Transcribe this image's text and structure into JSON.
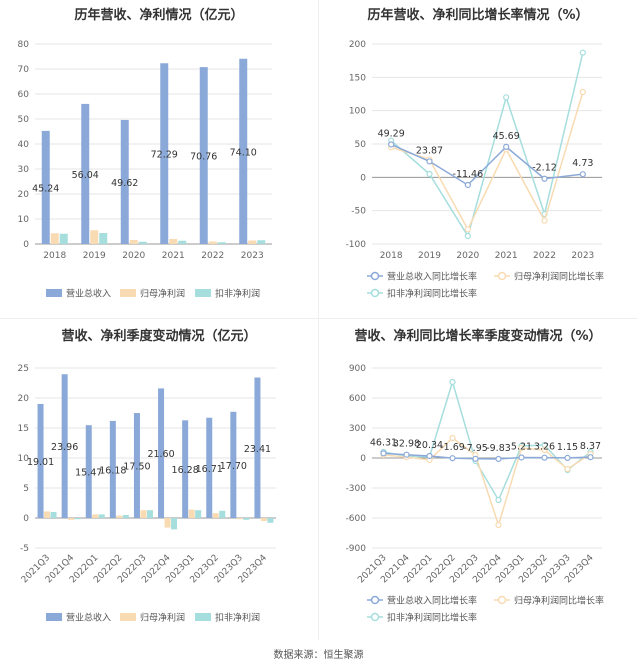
{
  "source_text": "数据来源：恒生聚源",
  "chart_data": [
    {
      "type": "bar",
      "title": "历年营收、净利情况（亿元）",
      "categories": [
        "2018",
        "2019",
        "2020",
        "2021",
        "2022",
        "2023"
      ],
      "ylim": [
        0,
        80
      ],
      "yticks": [
        0,
        10,
        20,
        30,
        40,
        50,
        60,
        70,
        80
      ],
      "grid": true,
      "legend_position": "bottom",
      "series": [
        {
          "name": "营业总收入",
          "color": "#8ba9d8",
          "values": [
            45.24,
            56.04,
            49.62,
            72.29,
            70.76,
            74.1
          ],
          "labels": [
            "45.24",
            "56.04",
            "49.62",
            "72.29",
            "70.76",
            "74.10"
          ]
        },
        {
          "name": "归母净利润",
          "color": "#f8dbb2",
          "values": [
            4.3,
            5.5,
            1.6,
            2.0,
            1.0,
            1.4
          ]
        },
        {
          "name": "扣非净利润",
          "color": "#a5dedd",
          "values": [
            4.1,
            4.4,
            0.9,
            1.3,
            0.7,
            1.5
          ]
        }
      ]
    },
    {
      "type": "line",
      "title": "历年营收、净利同比增长率情况（%）",
      "categories": [
        "2018",
        "2019",
        "2020",
        "2021",
        "2022",
        "2023"
      ],
      "ylim": [
        -100,
        200
      ],
      "yticks": [
        -100,
        -50,
        0,
        50,
        100,
        150,
        200
      ],
      "grid": true,
      "legend_position": "bottom",
      "series": [
        {
          "name": "营业总收入同比增长率",
          "color": "#8ba9d8",
          "values": [
            49.29,
            23.87,
            -11.46,
            45.69,
            -2.12,
            4.73
          ],
          "labels": [
            "49.29",
            "23.87",
            "-11.46",
            "45.69",
            "-2.12",
            "4.73"
          ]
        },
        {
          "name": "归母净利润同比增长率",
          "color": "#f8dbb2",
          "values": [
            45,
            27,
            -78,
            42,
            -65,
            128
          ]
        },
        {
          "name": "扣非净利润同比增长率",
          "color": "#a5dedd",
          "values": [
            55,
            5,
            -88,
            120,
            -55,
            187
          ]
        }
      ]
    },
    {
      "type": "bar",
      "title": "营收、净利季度变动情况（亿元）",
      "categories": [
        "2021Q3",
        "2021Q4",
        "2022Q1",
        "2022Q2",
        "2022Q3",
        "2022Q4",
        "2023Q1",
        "2023Q2",
        "2023Q3",
        "2023Q4"
      ],
      "ylim": [
        -5,
        25
      ],
      "yticks": [
        -5,
        0,
        5,
        10,
        15,
        20,
        25
      ],
      "grid": true,
      "legend_position": "bottom",
      "series": [
        {
          "name": "营业总收入",
          "color": "#8ba9d8",
          "values": [
            19.01,
            23.96,
            15.47,
            16.18,
            17.5,
            21.6,
            16.28,
            16.71,
            17.7,
            23.41
          ],
          "labels": [
            "19.01",
            "23.96",
            "15.47",
            "16.18",
            "17.50",
            "21.60",
            "16.28",
            "16.71",
            "17.70",
            "23.41"
          ]
        },
        {
          "name": "归母净利润",
          "color": "#f8dbb2",
          "values": [
            1.1,
            -0.3,
            0.6,
            0.4,
            1.3,
            -1.6,
            1.4,
            0.8,
            -0.2,
            -0.5
          ]
        },
        {
          "name": "扣非净利润",
          "color": "#a5dedd",
          "values": [
            1.0,
            -0.2,
            0.6,
            0.5,
            1.3,
            -1.9,
            1.3,
            1.2,
            -0.3,
            -0.8
          ]
        }
      ]
    },
    {
      "type": "line",
      "title": "营收、净利同比增长率季度变动情况（%）",
      "categories": [
        "2021Q3",
        "2021Q4",
        "2022Q1",
        "2022Q2",
        "2022Q3",
        "2022Q4",
        "2023Q1",
        "2023Q2",
        "2023Q3",
        "2023Q4"
      ],
      "ylim": [
        -900,
        900
      ],
      "yticks": [
        -900,
        -600,
        -300,
        0,
        300,
        600,
        900
      ],
      "grid": true,
      "legend_position": "bottom",
      "series": [
        {
          "name": "营业总收入同比增长率",
          "color": "#8ba9d8",
          "values": [
            46.31,
            32.98,
            20.34,
            -1.69,
            -7.95,
            -9.83,
            5.21,
            3.26,
            1.15,
            8.37
          ],
          "labels": [
            "46.31",
            "32.98",
            "20.34",
            "-1.69",
            "-7.95",
            "-9.83",
            "5.21",
            "3.26",
            "1.15",
            "8.37"
          ]
        },
        {
          "name": "归母净利润同比增长率",
          "color": "#f8dbb2",
          "values": [
            30,
            10,
            -20,
            200,
            30,
            -670,
            100,
            80,
            -110,
            40
          ]
        },
        {
          "name": "扣非净利润同比增长率",
          "color": "#a5dedd",
          "values": [
            60,
            20,
            10,
            760,
            -30,
            -420,
            120,
            130,
            -120,
            60
          ]
        }
      ]
    }
  ]
}
